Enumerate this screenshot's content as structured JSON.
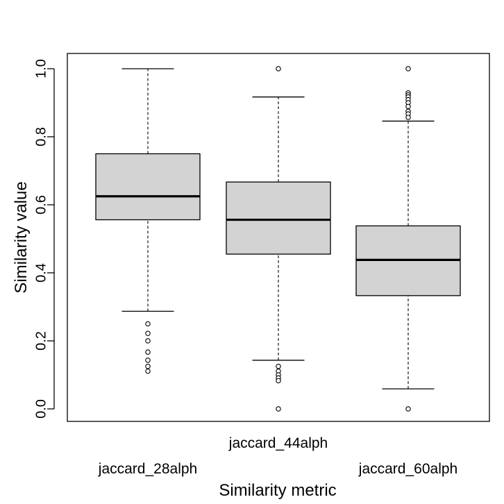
{
  "chart_data": {
    "type": "boxplot",
    "xlabel": "Similarity metric",
    "ylabel": "Similarity value",
    "categories": [
      "jaccard_28alph",
      "jaccard_44alph",
      "jaccard_60alph"
    ],
    "ylim": [
      -0.04,
      1.04
    ],
    "yticks": [
      0.0,
      0.2,
      0.4,
      0.6,
      0.8,
      1.0
    ],
    "ytick_labels": [
      "0.0",
      "0.2",
      "0.4",
      "0.6",
      "0.8",
      "1.0"
    ],
    "grid": false,
    "legend": "none",
    "colors": {
      "box_fill": "#d3d3d3",
      "stroke": "#000000"
    },
    "boxes": [
      {
        "category": "jaccard_28alph",
        "whisker_low": 0.287,
        "q1": 0.556,
        "median": 0.625,
        "q3": 0.75,
        "whisker_high": 1.0,
        "outliers": [
          0.25,
          0.222,
          0.2,
          0.167,
          0.143,
          0.125,
          0.111
        ]
      },
      {
        "category": "jaccard_44alph",
        "whisker_low": 0.143,
        "q1": 0.455,
        "median": 0.556,
        "q3": 0.667,
        "whisker_high": 0.917,
        "outliers": [
          1.0,
          0.125,
          0.111,
          0.1,
          0.091,
          0.083,
          0.0
        ]
      },
      {
        "category": "jaccard_60alph",
        "whisker_low": 0.059,
        "q1": 0.333,
        "median": 0.438,
        "q3": 0.538,
        "whisker_high": 0.846,
        "outliers": [
          1.0,
          0.929,
          0.923,
          0.917,
          0.909,
          0.9,
          0.889,
          0.875,
          0.867,
          0.857,
          0.0
        ]
      }
    ]
  }
}
